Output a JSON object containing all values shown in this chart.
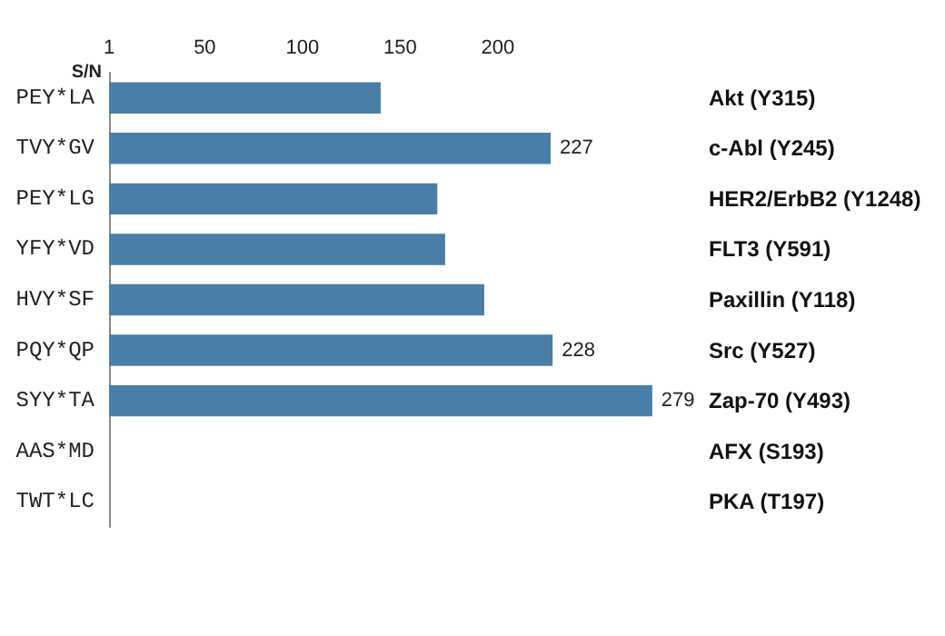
{
  "chart_data": {
    "type": "bar",
    "orientation": "horizontal",
    "xlabel": "S/N",
    "categories": [
      "PEY*LA",
      "TVY*GV",
      "PEY*LG",
      "YFY*VD",
      "HVY*SF",
      "PQY*QP",
      "SYY*TA",
      "AAS*MD",
      "TWT*LC"
    ],
    "y2_categories": [
      "Akt (Y315)",
      "c-Abl (Y245)",
      "HER2/ErbB2 (Y1248)",
      "FLT3 (Y591)",
      "Paxillin (Y118)",
      "Src (Y527)",
      "Zap-70 (Y493)",
      "AFX (S193)",
      "PKA (T197)"
    ],
    "values": [
      140,
      227,
      169,
      173,
      193,
      228,
      279,
      null,
      null
    ],
    "value_labels": [
      null,
      "227",
      null,
      null,
      null,
      "228",
      "279",
      null,
      null
    ],
    "color": "#4a7ea6",
    "xlim": [
      1,
      280
    ],
    "xticks": [
      1,
      50,
      100,
      150,
      200
    ],
    "grid": false
  }
}
